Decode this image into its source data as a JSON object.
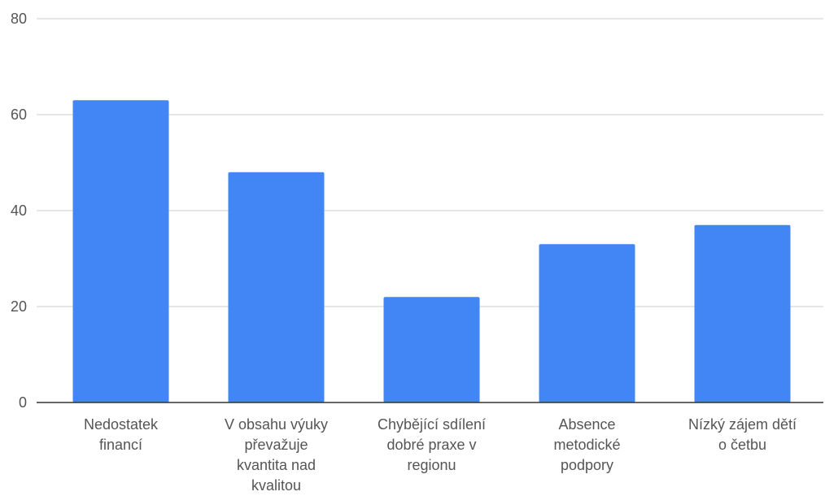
{
  "chart_data": {
    "type": "bar",
    "categories": [
      [
        "Nedostatek",
        "financí"
      ],
      [
        "V obsahu výuky",
        "převažuje",
        "kvantita nad",
        "kvalitou"
      ],
      [
        "Chybějící sdílení",
        "dobré praxe v",
        "regionu"
      ],
      [
        "Absence",
        "metodické",
        "podpory"
      ],
      [
        "Nízký zájem dětí",
        "o četbu"
      ]
    ],
    "values": [
      63,
      48,
      22,
      33,
      37
    ],
    "ylim": [
      0,
      80
    ],
    "yticks": [
      0,
      20,
      40,
      60,
      80
    ],
    "grid": true,
    "colors": {
      "bar": "#4285f4",
      "grid": "#cccccc",
      "axis": "#333333"
    }
  }
}
